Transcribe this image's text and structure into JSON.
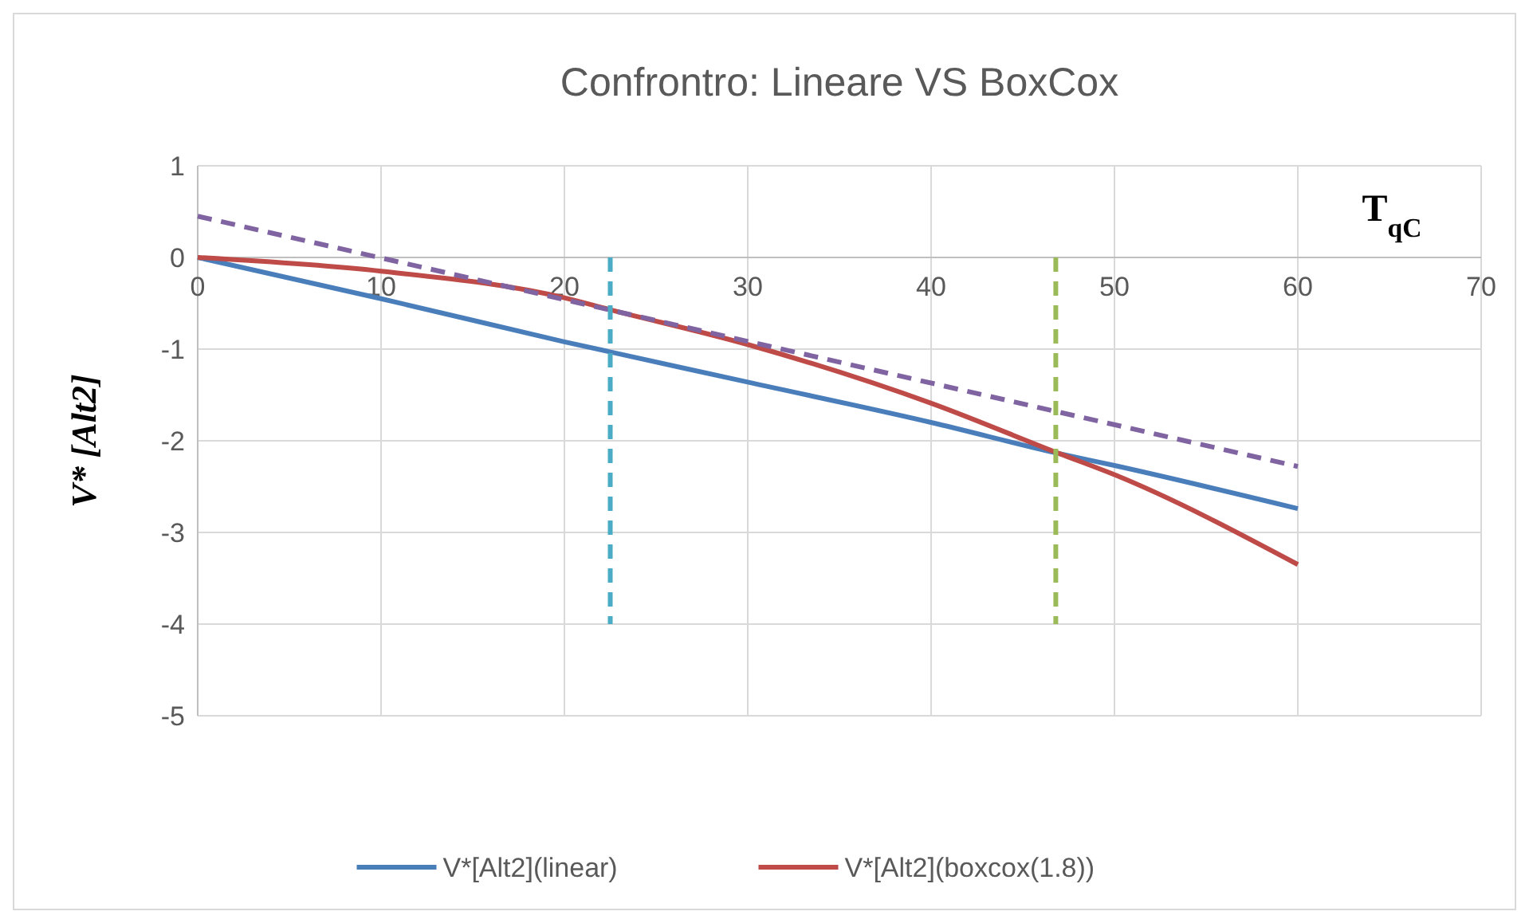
{
  "chart_data": {
    "type": "line",
    "title": "Confrontro: Lineare VS BoxCox",
    "xlabel": "T$_{qC}$",
    "ylabel": "V* [Alt2]",
    "xlim": [
      0,
      70
    ],
    "xticks": [
      0,
      10,
      20,
      30,
      40,
      50,
      60,
      70
    ],
    "ylim": [
      -5,
      1
    ],
    "yticks": [
      -5,
      -4,
      -3,
      -2,
      -1,
      0,
      1
    ],
    "grid": true,
    "legend": "bottom",
    "series": [
      {
        "name": "V*[Alt2](linear)",
        "color": "#4a7ebb",
        "x": [
          0,
          10,
          20,
          30,
          40,
          47,
          50,
          60
        ],
        "values": [
          0,
          -0.45,
          -0.92,
          -1.36,
          -1.8,
          -2.14,
          -2.27,
          -2.74
        ]
      },
      {
        "name": "V*[Alt2](boxcox(1.8))",
        "color": "#be4b48",
        "x": [
          0,
          10,
          20,
          22.5,
          30,
          40,
          47,
          50,
          60
        ],
        "values": [
          0,
          -0.15,
          -0.44,
          -0.57,
          -0.95,
          -1.59,
          -2.14,
          -2.37,
          -3.35
        ]
      },
      {
        "color": "#8064a2",
        "line_style": "dashed",
        "x": [
          0,
          60
        ],
        "values": [
          0.45,
          -2.28
        ]
      },
      {
        "color": "#4bacc6",
        "line_style": "dashed",
        "x": [
          22.5,
          22.5
        ],
        "values": [
          0,
          -4
        ]
      },
      {
        "color": "#9bbb59",
        "line_style": "dashed",
        "x": [
          46.8,
          46.8
        ],
        "values": [
          0,
          -4
        ]
      }
    ]
  }
}
